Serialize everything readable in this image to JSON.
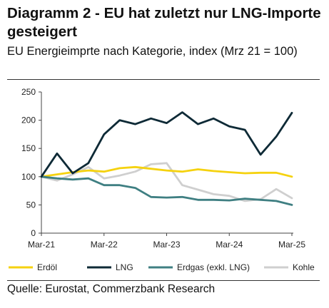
{
  "header": {
    "title": "Diagramm 2 - EU hat zuletzt nur LNG-Importe gesteigert",
    "subtitle": "EU Energieimprte nach Kategorie, index (Mrz 21 = 100)"
  },
  "footer": {
    "source": "Quelle: Eurostat, Commerzbank Research"
  },
  "chart_data": {
    "type": "line",
    "title": "",
    "xlabel": "",
    "ylabel": "",
    "ylim": [
      0,
      250
    ],
    "yticks": [
      0,
      50,
      100,
      150,
      200,
      250
    ],
    "x_tick_labels": [
      "Mar-21",
      "Mar-22",
      "Mar-23",
      "Mar-24",
      "Mar-25"
    ],
    "x_tick_positions": [
      0,
      12,
      24,
      36,
      48
    ],
    "xlim": [
      0,
      48
    ],
    "grid": false,
    "legend_position": "bottom",
    "series": [
      {
        "name": "Erdöl",
        "color": "#f5d20f",
        "x": [
          0,
          3,
          6,
          9,
          12,
          15,
          18,
          21,
          24,
          27,
          30,
          33,
          36,
          39,
          42,
          45,
          48
        ],
        "values": [
          100,
          104,
          108,
          111,
          109,
          115,
          117,
          114,
          111,
          109,
          113,
          110,
          108,
          106,
          107,
          107,
          100
        ]
      },
      {
        "name": "LNG",
        "color": "#0e2a36",
        "x": [
          0,
          3,
          6,
          9,
          12,
          15,
          18,
          21,
          24,
          27,
          30,
          33,
          36,
          39,
          42,
          45,
          48
        ],
        "values": [
          100,
          141,
          106,
          124,
          175,
          200,
          193,
          203,
          195,
          214,
          193,
          203,
          189,
          183,
          139,
          171,
          213
        ]
      },
      {
        "name": "Erdgas (exkl. LNG)",
        "color": "#3f7f82",
        "x": [
          0,
          3,
          6,
          9,
          12,
          15,
          18,
          21,
          24,
          27,
          30,
          33,
          36,
          39,
          42,
          45,
          48
        ],
        "values": [
          100,
          97,
          95,
          97,
          85,
          85,
          80,
          64,
          63,
          64,
          59,
          59,
          58,
          61,
          59,
          57,
          50
        ]
      },
      {
        "name": "Kohle",
        "color": "#cfcfcf",
        "x": [
          0,
          3,
          6,
          9,
          12,
          15,
          18,
          21,
          24,
          27,
          30,
          33,
          36,
          39,
          42,
          45,
          48
        ],
        "values": [
          100,
          93,
          104,
          117,
          97,
          102,
          109,
          122,
          124,
          85,
          77,
          69,
          66,
          57,
          60,
          78,
          62
        ]
      }
    ]
  }
}
